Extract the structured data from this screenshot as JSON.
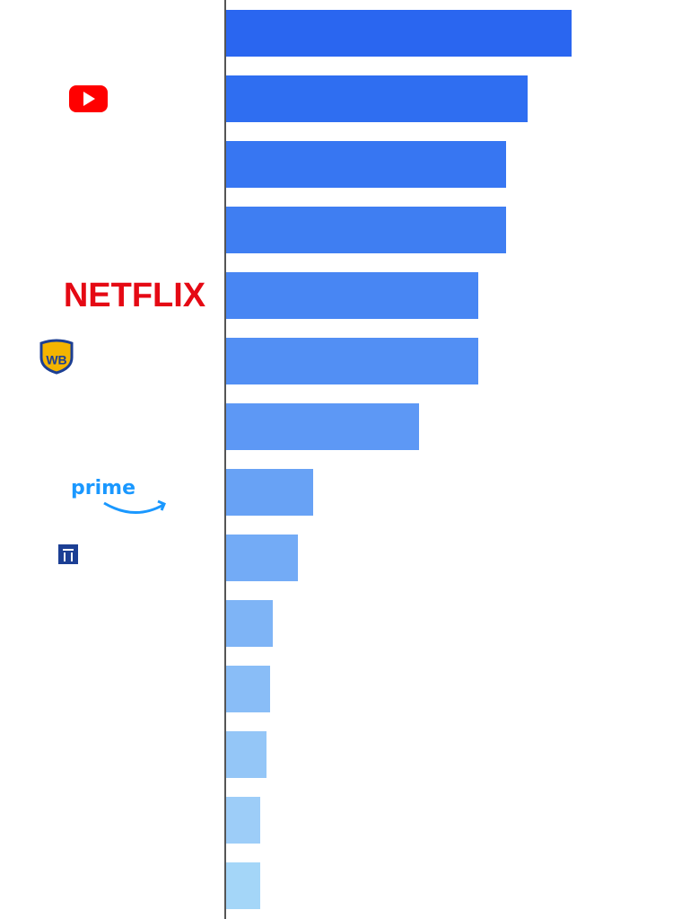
{
  "chart_data": {
    "type": "bar",
    "orientation": "horizontal",
    "categories": [
      null,
      null,
      null,
      null,
      "NETFLIX",
      "WB",
      null,
      "prime",
      null,
      null,
      null,
      null,
      null,
      null
    ],
    "values": [
      385,
      336,
      312,
      312,
      281,
      281,
      215,
      97,
      80,
      52,
      49,
      45,
      38,
      38
    ],
    "colors": [
      "#2a66f0",
      "#2f6ef1",
      "#3776f2",
      "#3f7ef2",
      "#4886f3",
      "#528ff4",
      "#5d98f5",
      "#68a2f5",
      "#73abf6",
      "#7eb4f6",
      "#89bdf7",
      "#94c6f7",
      "#9dcdf8",
      "#a4d6f8"
    ]
  }
}
